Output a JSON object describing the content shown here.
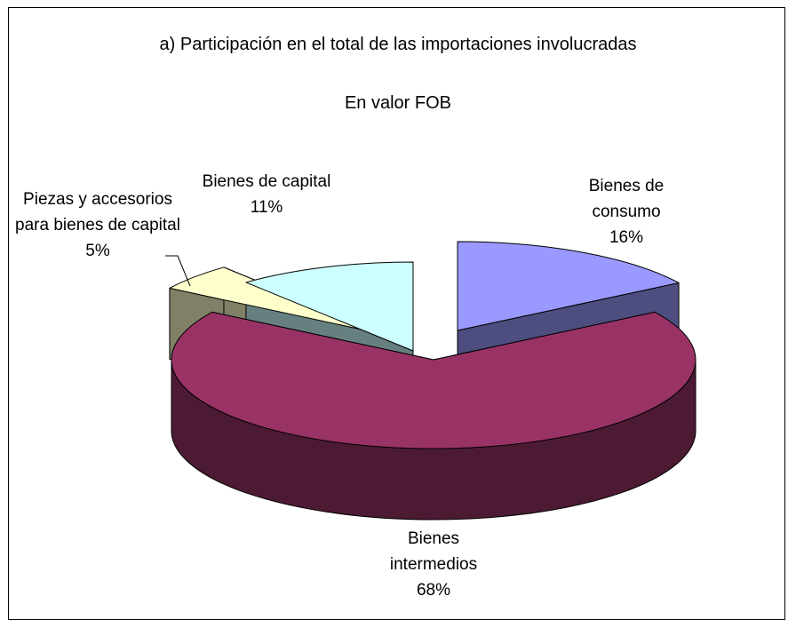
{
  "chart_data": {
    "type": "pie3d",
    "title": "a) Participación en el total de las importaciones involucradas",
    "subtitle": "En valor FOB",
    "categories": [
      "Bienes de consumo",
      "Bienes intermedios",
      "Piezas y accesorios para bienes de capital",
      "Bienes de capital"
    ],
    "values": [
      16,
      68,
      5,
      11
    ],
    "value_labels": [
      "16%",
      "68%",
      "5%",
      "11%"
    ],
    "colors": [
      "#9999ff",
      "#993366",
      "#ffffcc",
      "#ccffff"
    ],
    "side_colors": [
      "#4d4d80",
      "#4d1a33",
      "#808066",
      "#668080"
    ]
  }
}
